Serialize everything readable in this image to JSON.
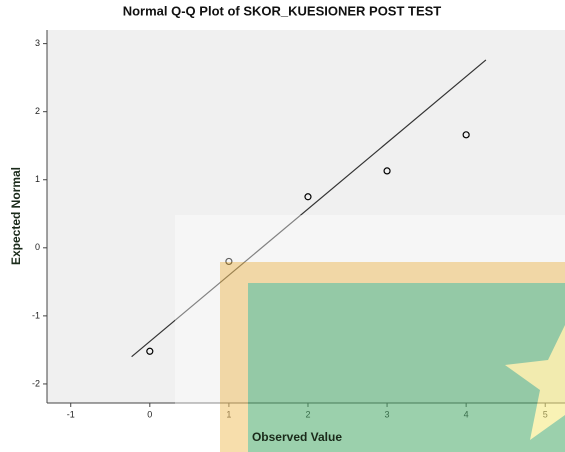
{
  "chart_data": {
    "type": "scatter",
    "title": "Normal Q-Q Plot of SKOR_KUESIONER POST TEST",
    "x_label": "Observed Value",
    "y_label": "Expected Normal",
    "x": [
      0,
      1,
      2,
      3,
      4
    ],
    "values": [
      -1.52,
      -0.2,
      0.75,
      1.13,
      1.66
    ],
    "reference_line": {
      "x": [
        -0.23,
        4.25
      ],
      "y": [
        -1.6,
        2.76
      ]
    },
    "xlim": [
      -1.3,
      5.25
    ],
    "ylim": [
      -2.28,
      3.2
    ],
    "xticks": [
      -1,
      0,
      1,
      2,
      3,
      4,
      5
    ],
    "yticks": [
      -2,
      -1,
      0,
      1,
      2,
      3
    ],
    "color": "#000000",
    "line_color": "#333333"
  }
}
